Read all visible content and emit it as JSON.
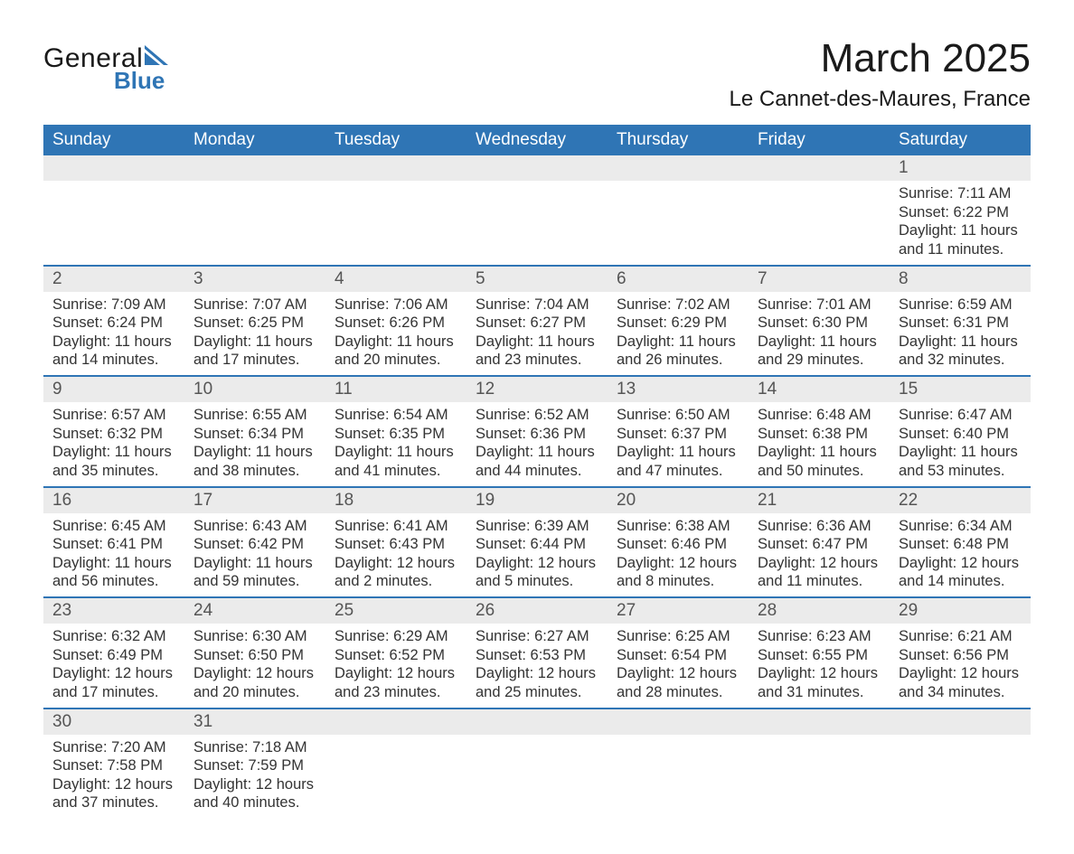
{
  "brand": {
    "name1": "General",
    "name2": "Blue",
    "accent": "#2f75b5"
  },
  "title": "March 2025",
  "location": "Le Cannet-des-Maures, France",
  "colors": {
    "header_bg": "#2f75b5",
    "header_fg": "#ffffff",
    "daynum_bg": "#ebebeb",
    "row_border": "#2f75b5",
    "text": "#333333"
  },
  "weekdays": [
    "Sunday",
    "Monday",
    "Tuesday",
    "Wednesday",
    "Thursday",
    "Friday",
    "Saturday"
  ],
  "weeks": [
    [
      {
        "blank": true
      },
      {
        "blank": true
      },
      {
        "blank": true
      },
      {
        "blank": true
      },
      {
        "blank": true
      },
      {
        "blank": true
      },
      {
        "day": "1",
        "sunrise": "Sunrise: 7:11 AM",
        "sunset": "Sunset: 6:22 PM",
        "dl1": "Daylight: 11 hours",
        "dl2": "and 11 minutes."
      }
    ],
    [
      {
        "day": "2",
        "sunrise": "Sunrise: 7:09 AM",
        "sunset": "Sunset: 6:24 PM",
        "dl1": "Daylight: 11 hours",
        "dl2": "and 14 minutes."
      },
      {
        "day": "3",
        "sunrise": "Sunrise: 7:07 AM",
        "sunset": "Sunset: 6:25 PM",
        "dl1": "Daylight: 11 hours",
        "dl2": "and 17 minutes."
      },
      {
        "day": "4",
        "sunrise": "Sunrise: 7:06 AM",
        "sunset": "Sunset: 6:26 PM",
        "dl1": "Daylight: 11 hours",
        "dl2": "and 20 minutes."
      },
      {
        "day": "5",
        "sunrise": "Sunrise: 7:04 AM",
        "sunset": "Sunset: 6:27 PM",
        "dl1": "Daylight: 11 hours",
        "dl2": "and 23 minutes."
      },
      {
        "day": "6",
        "sunrise": "Sunrise: 7:02 AM",
        "sunset": "Sunset: 6:29 PM",
        "dl1": "Daylight: 11 hours",
        "dl2": "and 26 minutes."
      },
      {
        "day": "7",
        "sunrise": "Sunrise: 7:01 AM",
        "sunset": "Sunset: 6:30 PM",
        "dl1": "Daylight: 11 hours",
        "dl2": "and 29 minutes."
      },
      {
        "day": "8",
        "sunrise": "Sunrise: 6:59 AM",
        "sunset": "Sunset: 6:31 PM",
        "dl1": "Daylight: 11 hours",
        "dl2": "and 32 minutes."
      }
    ],
    [
      {
        "day": "9",
        "sunrise": "Sunrise: 6:57 AM",
        "sunset": "Sunset: 6:32 PM",
        "dl1": "Daylight: 11 hours",
        "dl2": "and 35 minutes."
      },
      {
        "day": "10",
        "sunrise": "Sunrise: 6:55 AM",
        "sunset": "Sunset: 6:34 PM",
        "dl1": "Daylight: 11 hours",
        "dl2": "and 38 minutes."
      },
      {
        "day": "11",
        "sunrise": "Sunrise: 6:54 AM",
        "sunset": "Sunset: 6:35 PM",
        "dl1": "Daylight: 11 hours",
        "dl2": "and 41 minutes."
      },
      {
        "day": "12",
        "sunrise": "Sunrise: 6:52 AM",
        "sunset": "Sunset: 6:36 PM",
        "dl1": "Daylight: 11 hours",
        "dl2": "and 44 minutes."
      },
      {
        "day": "13",
        "sunrise": "Sunrise: 6:50 AM",
        "sunset": "Sunset: 6:37 PM",
        "dl1": "Daylight: 11 hours",
        "dl2": "and 47 minutes."
      },
      {
        "day": "14",
        "sunrise": "Sunrise: 6:48 AM",
        "sunset": "Sunset: 6:38 PM",
        "dl1": "Daylight: 11 hours",
        "dl2": "and 50 minutes."
      },
      {
        "day": "15",
        "sunrise": "Sunrise: 6:47 AM",
        "sunset": "Sunset: 6:40 PM",
        "dl1": "Daylight: 11 hours",
        "dl2": "and 53 minutes."
      }
    ],
    [
      {
        "day": "16",
        "sunrise": "Sunrise: 6:45 AM",
        "sunset": "Sunset: 6:41 PM",
        "dl1": "Daylight: 11 hours",
        "dl2": "and 56 minutes."
      },
      {
        "day": "17",
        "sunrise": "Sunrise: 6:43 AM",
        "sunset": "Sunset: 6:42 PM",
        "dl1": "Daylight: 11 hours",
        "dl2": "and 59 minutes."
      },
      {
        "day": "18",
        "sunrise": "Sunrise: 6:41 AM",
        "sunset": "Sunset: 6:43 PM",
        "dl1": "Daylight: 12 hours",
        "dl2": "and 2 minutes."
      },
      {
        "day": "19",
        "sunrise": "Sunrise: 6:39 AM",
        "sunset": "Sunset: 6:44 PM",
        "dl1": "Daylight: 12 hours",
        "dl2": "and 5 minutes."
      },
      {
        "day": "20",
        "sunrise": "Sunrise: 6:38 AM",
        "sunset": "Sunset: 6:46 PM",
        "dl1": "Daylight: 12 hours",
        "dl2": "and 8 minutes."
      },
      {
        "day": "21",
        "sunrise": "Sunrise: 6:36 AM",
        "sunset": "Sunset: 6:47 PM",
        "dl1": "Daylight: 12 hours",
        "dl2": "and 11 minutes."
      },
      {
        "day": "22",
        "sunrise": "Sunrise: 6:34 AM",
        "sunset": "Sunset: 6:48 PM",
        "dl1": "Daylight: 12 hours",
        "dl2": "and 14 minutes."
      }
    ],
    [
      {
        "day": "23",
        "sunrise": "Sunrise: 6:32 AM",
        "sunset": "Sunset: 6:49 PM",
        "dl1": "Daylight: 12 hours",
        "dl2": "and 17 minutes."
      },
      {
        "day": "24",
        "sunrise": "Sunrise: 6:30 AM",
        "sunset": "Sunset: 6:50 PM",
        "dl1": "Daylight: 12 hours",
        "dl2": "and 20 minutes."
      },
      {
        "day": "25",
        "sunrise": "Sunrise: 6:29 AM",
        "sunset": "Sunset: 6:52 PM",
        "dl1": "Daylight: 12 hours",
        "dl2": "and 23 minutes."
      },
      {
        "day": "26",
        "sunrise": "Sunrise: 6:27 AM",
        "sunset": "Sunset: 6:53 PM",
        "dl1": "Daylight: 12 hours",
        "dl2": "and 25 minutes."
      },
      {
        "day": "27",
        "sunrise": "Sunrise: 6:25 AM",
        "sunset": "Sunset: 6:54 PM",
        "dl1": "Daylight: 12 hours",
        "dl2": "and 28 minutes."
      },
      {
        "day": "28",
        "sunrise": "Sunrise: 6:23 AM",
        "sunset": "Sunset: 6:55 PM",
        "dl1": "Daylight: 12 hours",
        "dl2": "and 31 minutes."
      },
      {
        "day": "29",
        "sunrise": "Sunrise: 6:21 AM",
        "sunset": "Sunset: 6:56 PM",
        "dl1": "Daylight: 12 hours",
        "dl2": "and 34 minutes."
      }
    ],
    [
      {
        "day": "30",
        "sunrise": "Sunrise: 7:20 AM",
        "sunset": "Sunset: 7:58 PM",
        "dl1": "Daylight: 12 hours",
        "dl2": "and 37 minutes."
      },
      {
        "day": "31",
        "sunrise": "Sunrise: 7:18 AM",
        "sunset": "Sunset: 7:59 PM",
        "dl1": "Daylight: 12 hours",
        "dl2": "and 40 minutes."
      },
      {
        "blank": true
      },
      {
        "blank": true
      },
      {
        "blank": true
      },
      {
        "blank": true
      },
      {
        "blank": true
      }
    ]
  ]
}
